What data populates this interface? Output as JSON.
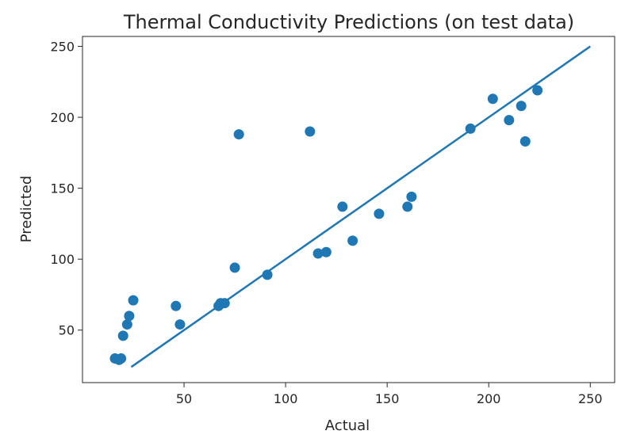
{
  "chart_data": {
    "type": "scatter",
    "title": "Thermal Conductivity Predictions (on test data)",
    "xlabel": "Actual",
    "ylabel": "Predicted",
    "xlim": [
      0,
      262
    ],
    "ylim": [
      13,
      257
    ],
    "xticks": [
      50,
      100,
      150,
      200,
      250
    ],
    "yticks": [
      50,
      100,
      150,
      200,
      250
    ],
    "grid": false,
    "legend": "none",
    "colors": {
      "points": "#1f77b4",
      "line": "#1f77b4"
    },
    "series": [
      {
        "kind": "scatter",
        "points": [
          [
            16,
            30
          ],
          [
            18,
            29
          ],
          [
            19,
            30
          ],
          [
            20,
            46
          ],
          [
            22,
            54
          ],
          [
            23,
            60
          ],
          [
            25,
            71
          ],
          [
            46,
            67
          ],
          [
            48,
            54
          ],
          [
            67,
            67
          ],
          [
            68,
            69
          ],
          [
            70,
            69
          ],
          [
            75,
            94
          ],
          [
            77,
            188
          ],
          [
            91,
            89
          ],
          [
            112,
            190
          ],
          [
            116,
            104
          ],
          [
            120,
            105
          ],
          [
            128,
            137
          ],
          [
            133,
            113
          ],
          [
            146,
            132
          ],
          [
            160,
            137
          ],
          [
            162,
            144
          ],
          [
            191,
            192
          ],
          [
            202,
            213
          ],
          [
            210,
            198
          ],
          [
            216,
            208
          ],
          [
            218,
            183
          ],
          [
            224,
            219
          ]
        ]
      },
      {
        "kind": "line",
        "points": [
          [
            24,
            24
          ],
          [
            250,
            250
          ]
        ]
      }
    ]
  }
}
